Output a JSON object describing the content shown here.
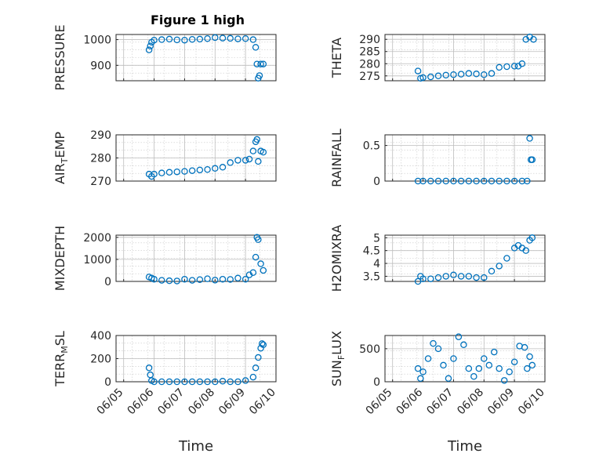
{
  "title": "Figure 1 high",
  "colors": {
    "marker": "#0072BD",
    "axis": "#262626"
  },
  "chart_data": [
    {
      "type": "scatter",
      "ylabel": "PRESSURE",
      "xlim": [
        "06/05",
        "06/10"
      ],
      "ylim": [
        840,
        1020
      ],
      "yticks": [
        900,
        1000
      ],
      "xticks": [],
      "x": [
        "06/05 20:00",
        "06/05 21:00",
        "06/05 22:00",
        "06/06 00:00",
        "06/06 06:00",
        "06/06 12:00",
        "06/06 18:00",
        "06/07 00:00",
        "06/07 06:00",
        "06/07 12:00",
        "06/07 18:00",
        "06/08 00:00",
        "06/08 06:00",
        "06/08 12:00",
        "06/08 18:00",
        "06/09 00:00",
        "06/09 06:00",
        "06/09 08:00",
        "06/09 09:00",
        "06/09 10:00",
        "06/09 11:00",
        "06/09 12:00",
        "06/09 14:00"
      ],
      "y": [
        960,
        975,
        990,
        998,
        1000,
        1002,
        999,
        998,
        1001,
        1002,
        1004,
        1008,
        1006,
        1005,
        1003,
        1004,
        1000,
        970,
        905,
        850,
        860,
        905,
        905
      ]
    },
    {
      "type": "scatter",
      "ylabel": "THETA",
      "xlim": [
        "06/05",
        "06/10"
      ],
      "ylim": [
        273,
        292
      ],
      "yticks": [
        275,
        280,
        285,
        290
      ],
      "xticks": [],
      "x": [
        "06/05 20:00",
        "06/05 22:00",
        "06/06 00:00",
        "06/06 06:00",
        "06/06 12:00",
        "06/06 18:00",
        "06/07 00:00",
        "06/07 06:00",
        "06/07 12:00",
        "06/07 18:00",
        "06/08 00:00",
        "06/08 06:00",
        "06/08 12:00",
        "06/08 18:00",
        "06/09 00:00",
        "06/09 03:00",
        "06/09 06:00",
        "06/09 09:00",
        "06/09 12:00",
        "06/09 15:00"
      ],
      "y": [
        277,
        274,
        274.3,
        274.6,
        275,
        275.3,
        275.5,
        275.7,
        276,
        275.8,
        275.5,
        276,
        278.5,
        278.8,
        279,
        279,
        280,
        290,
        291,
        290
      ]
    },
    {
      "type": "scatter",
      "ylabel": "AIR_TEMP",
      "ylabel_parts": {
        "main": "AIR",
        "sub": "T",
        "rest": "EMP"
      },
      "xlim": [
        "06/05",
        "06/10"
      ],
      "ylim": [
        270,
        290
      ],
      "yticks": [
        270,
        280,
        290
      ],
      "xticks": [],
      "x": [
        "06/05 20:00",
        "06/05 22:00",
        "06/06 00:00",
        "06/06 06:00",
        "06/06 12:00",
        "06/06 18:00",
        "06/07 00:00",
        "06/07 06:00",
        "06/07 12:00",
        "06/07 18:00",
        "06/08 00:00",
        "06/08 06:00",
        "06/08 12:00",
        "06/08 18:00",
        "06/09 00:00",
        "06/09 03:00",
        "06/09 06:00",
        "06/09 08:00",
        "06/09 09:00",
        "06/09 10:00",
        "06/09 12:00",
        "06/09 14:00"
      ],
      "y": [
        273,
        272,
        273,
        273.5,
        273.8,
        274,
        274.2,
        274.5,
        274.8,
        275,
        275.5,
        276,
        278,
        279,
        279,
        279.5,
        283,
        287,
        288,
        278.5,
        283,
        282.5
      ]
    },
    {
      "type": "scatter",
      "ylabel": "RAINFALL",
      "xlim": [
        "06/05",
        "06/10"
      ],
      "ylim": [
        0,
        0.65
      ],
      "yticks": [
        0,
        0.5
      ],
      "xticks": [],
      "x": [
        "06/05 20:00",
        "06/06 00:00",
        "06/06 06:00",
        "06/06 12:00",
        "06/06 18:00",
        "06/07 00:00",
        "06/07 06:00",
        "06/07 12:00",
        "06/07 18:00",
        "06/08 00:00",
        "06/08 06:00",
        "06/08 12:00",
        "06/08 18:00",
        "06/09 00:00",
        "06/09 06:00",
        "06/09 10:00",
        "06/09 12:00",
        "06/09 13:00",
        "06/09 14:00"
      ],
      "y": [
        0,
        0,
        0,
        0,
        0,
        0,
        0,
        0,
        0,
        0,
        0,
        0,
        0,
        0,
        0,
        0,
        0.6,
        0.3,
        0.3
      ]
    },
    {
      "type": "scatter",
      "ylabel": "MIXDEPTH",
      "xlim": [
        "06/05",
        "06/10"
      ],
      "ylim": [
        0,
        2100
      ],
      "yticks": [
        0,
        1000,
        2000
      ],
      "xticks": [],
      "x": [
        "06/05 20:00",
        "06/05 22:00",
        "06/06 00:00",
        "06/06 06:00",
        "06/06 12:00",
        "06/06 18:00",
        "06/07 00:00",
        "06/07 06:00",
        "06/07 12:00",
        "06/07 18:00",
        "06/08 00:00",
        "06/08 06:00",
        "06/08 12:00",
        "06/08 18:00",
        "06/09 00:00",
        "06/09 03:00",
        "06/09 06:00",
        "06/09 08:00",
        "06/09 09:00",
        "06/09 10:00",
        "06/09 12:00",
        "06/09 14:00"
      ],
      "y": [
        200,
        150,
        100,
        50,
        30,
        20,
        100,
        50,
        80,
        120,
        60,
        100,
        90,
        150,
        100,
        300,
        400,
        1100,
        2000,
        1900,
        800,
        500
      ]
    },
    {
      "type": "scatter",
      "ylabel": "H2OMIXRA",
      "xlim": [
        "06/05",
        "06/10"
      ],
      "ylim": [
        3.3,
        5.1
      ],
      "yticks": [
        3.5,
        4,
        4.5,
        5
      ],
      "xticks": [],
      "x": [
        "06/05 20:00",
        "06/05 22:00",
        "06/06 00:00",
        "06/06 06:00",
        "06/06 12:00",
        "06/06 18:00",
        "06/07 00:00",
        "06/07 06:00",
        "06/07 12:00",
        "06/07 18:00",
        "06/08 00:00",
        "06/08 06:00",
        "06/08 12:00",
        "06/08 18:00",
        "06/09 00:00",
        "06/09 03:00",
        "06/09 06:00",
        "06/09 09:00",
        "06/09 12:00",
        "06/09 14:00"
      ],
      "y": [
        3.3,
        3.5,
        3.4,
        3.4,
        3.45,
        3.5,
        3.55,
        3.5,
        3.5,
        3.45,
        3.45,
        3.7,
        3.9,
        4.2,
        4.6,
        4.7,
        4.6,
        4.5,
        4.9,
        5.0
      ]
    },
    {
      "type": "scatter",
      "ylabel": "TERR_MSL",
      "ylabel_parts": {
        "main": "TERR",
        "sub": "M",
        "rest": "SL"
      },
      "xlim": [
        "06/05",
        "06/10"
      ],
      "ylim": [
        0,
        400
      ],
      "yticks": [
        0,
        200,
        400
      ],
      "xticks": [
        "06/05",
        "06/06",
        "06/07",
        "06/08",
        "06/09",
        "06/10"
      ],
      "xlabel": "Time",
      "x": [
        "06/05 20:00",
        "06/05 21:00",
        "06/05 22:00",
        "06/06 00:00",
        "06/06 06:00",
        "06/06 12:00",
        "06/06 18:00",
        "06/07 00:00",
        "06/07 06:00",
        "06/07 12:00",
        "06/07 18:00",
        "06/08 00:00",
        "06/08 06:00",
        "06/08 12:00",
        "06/08 18:00",
        "06/09 00:00",
        "06/09 06:00",
        "06/09 08:00",
        "06/09 10:00",
        "06/09 12:00",
        "06/09 13:00",
        "06/09 14:00"
      ],
      "y": [
        120,
        60,
        10,
        0,
        0,
        0,
        0,
        0,
        0,
        0,
        0,
        0,
        5,
        0,
        0,
        10,
        40,
        120,
        210,
        290,
        330,
        320
      ]
    },
    {
      "type": "scatter",
      "ylabel": "SUN_FLUX",
      "ylabel_parts": {
        "main": "SUN",
        "sub": "F",
        "rest": "LUX"
      },
      "xlim": [
        "06/05",
        "06/10"
      ],
      "ylim": [
        0,
        700
      ],
      "yticks": [
        0,
        500
      ],
      "xticks": [
        "06/05",
        "06/06",
        "06/07",
        "06/08",
        "06/09",
        "06/10"
      ],
      "xlabel": "Time",
      "x": [
        "06/05 20:00",
        "06/05 22:00",
        "06/06 00:00",
        "06/06 04:00",
        "06/06 08:00",
        "06/06 12:00",
        "06/06 16:00",
        "06/06 20:00",
        "06/07 00:00",
        "06/07 04:00",
        "06/07 08:00",
        "06/07 12:00",
        "06/07 16:00",
        "06/07 20:00",
        "06/08 00:00",
        "06/08 04:00",
        "06/08 08:00",
        "06/08 12:00",
        "06/08 16:00",
        "06/08 20:00",
        "06/09 00:00",
        "06/09 04:00",
        "06/09 08:00",
        "06/09 10:00",
        "06/09 12:00",
        "06/09 14:00"
      ],
      "y": [
        200,
        50,
        150,
        350,
        580,
        500,
        250,
        50,
        350,
        680,
        560,
        200,
        80,
        200,
        350,
        250,
        450,
        200,
        20,
        150,
        300,
        540,
        520,
        200,
        380,
        250
      ]
    }
  ]
}
